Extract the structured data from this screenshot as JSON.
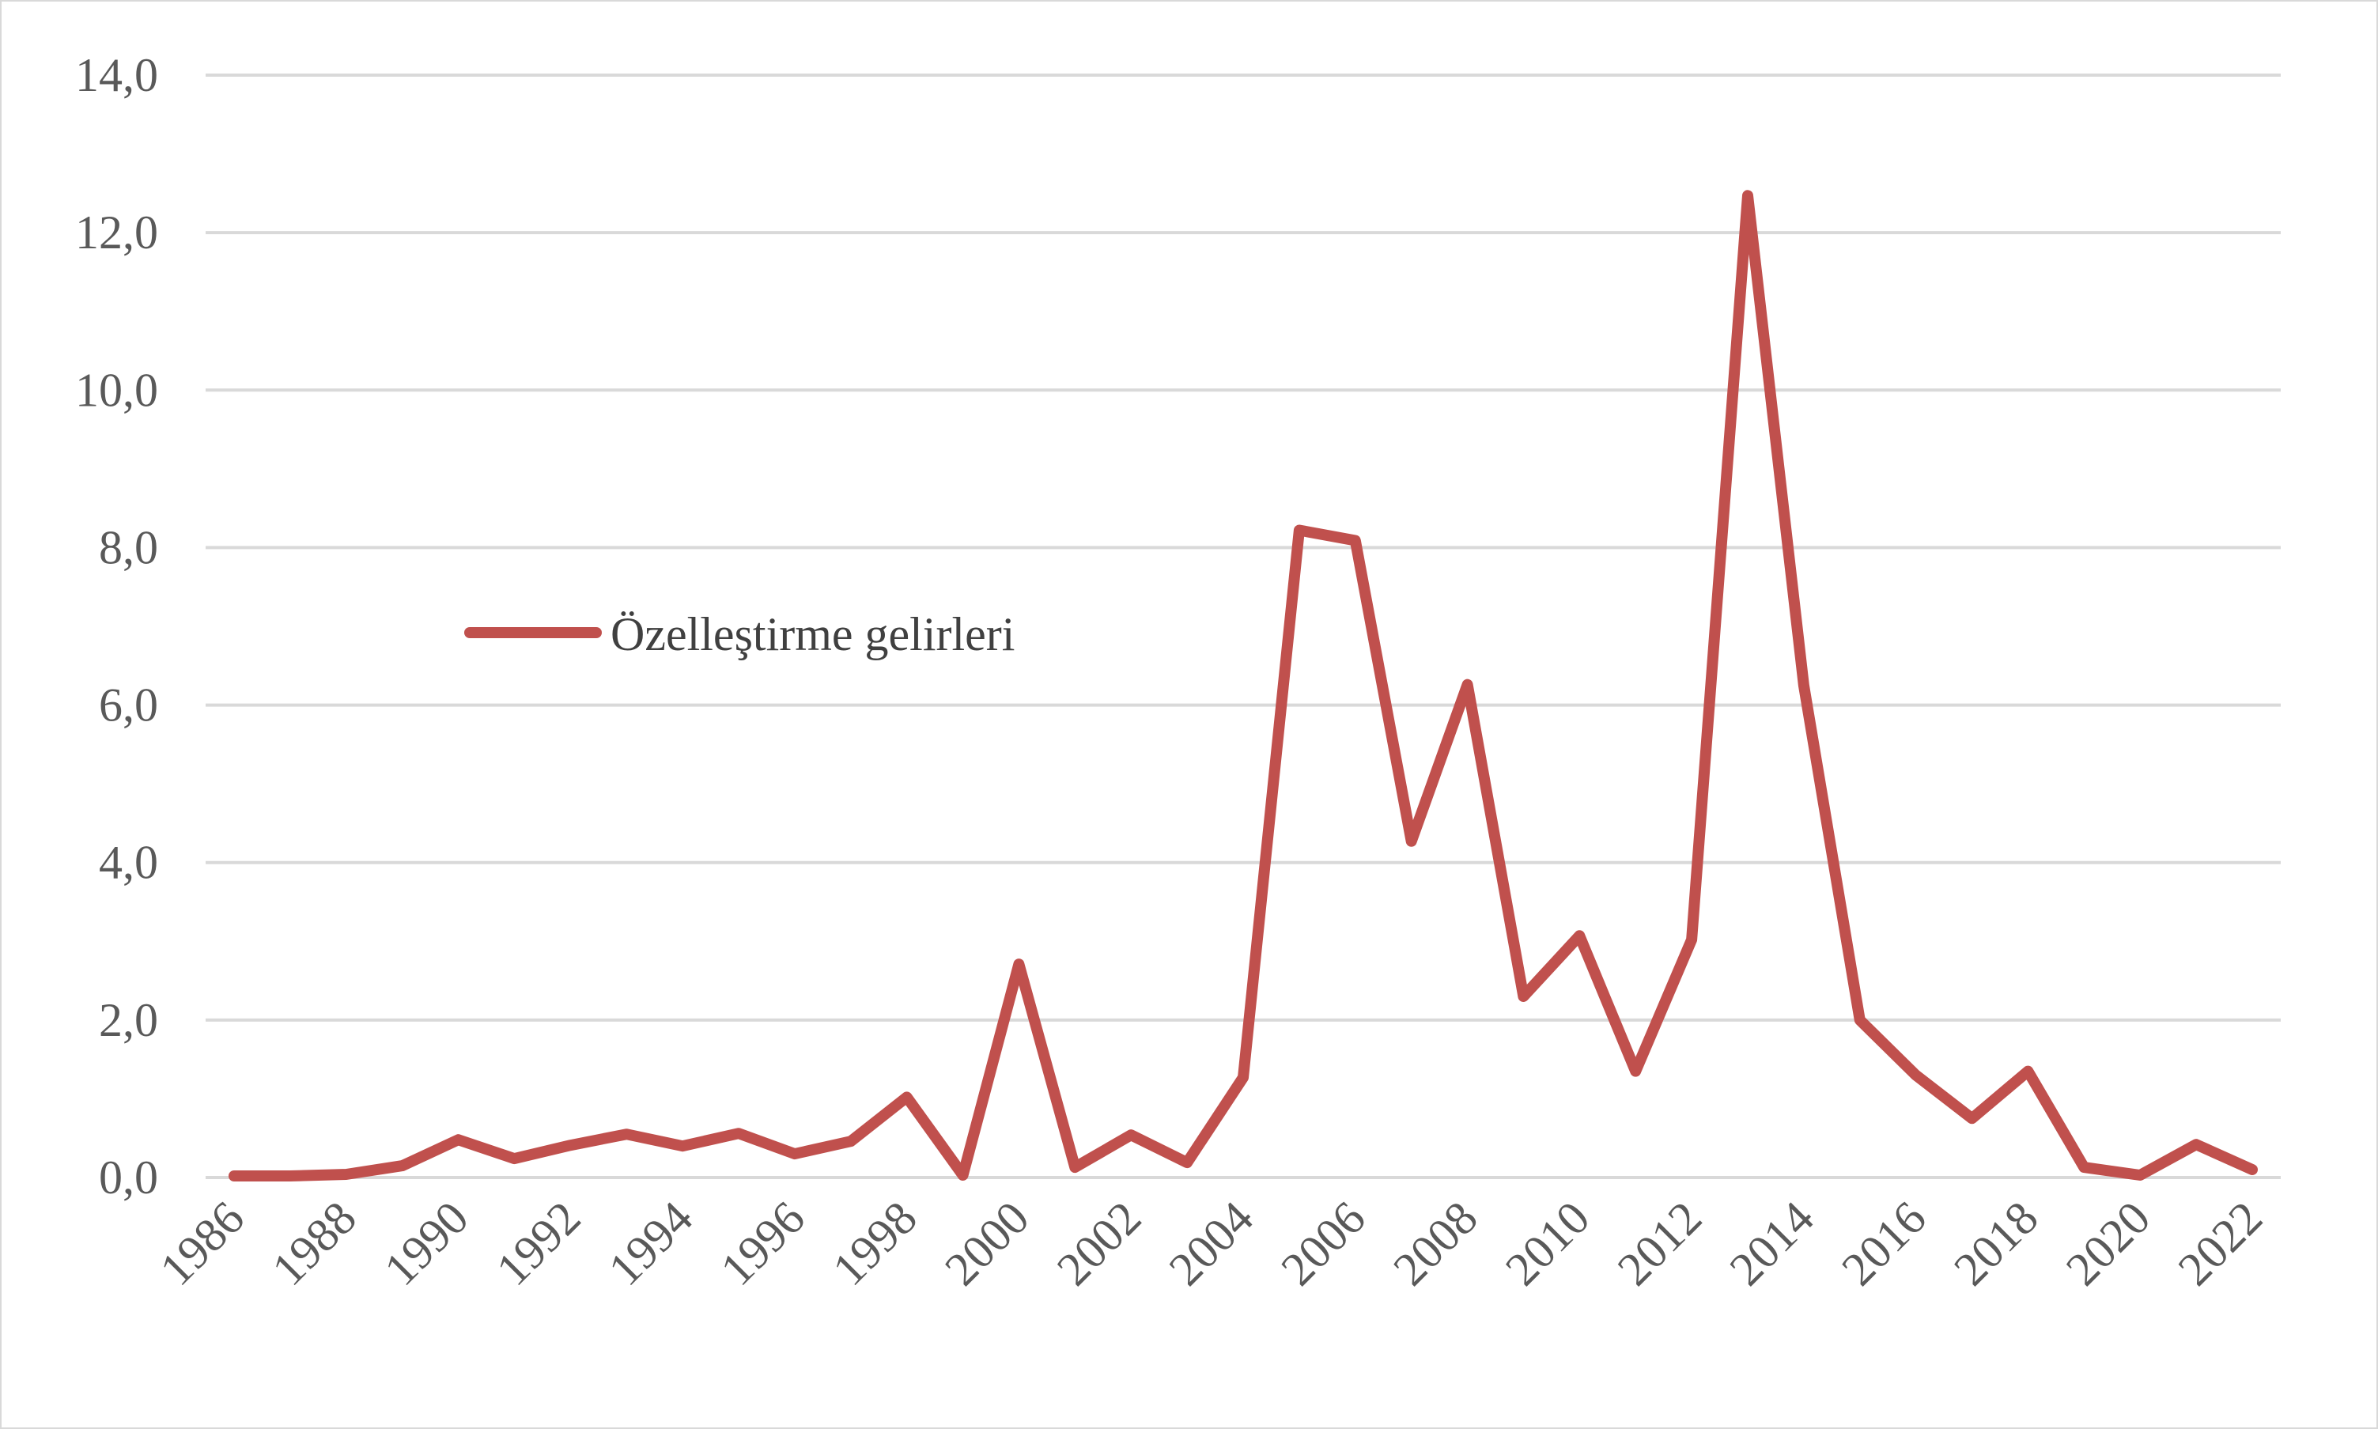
{
  "chart_data": {
    "type": "line",
    "title": "",
    "xlabel": "",
    "ylabel": "",
    "x": [
      1986,
      1987,
      1988,
      1989,
      1990,
      1991,
      1992,
      1993,
      1994,
      1995,
      1996,
      1997,
      1998,
      1999,
      2000,
      2001,
      2002,
      2003,
      2004,
      2005,
      2006,
      2007,
      2008,
      2009,
      2010,
      2011,
      2012,
      2013,
      2014,
      2015,
      2016,
      2017,
      2018,
      2019,
      2020,
      2021,
      2022
    ],
    "x_tick_labels": [
      "1986",
      "1988",
      "1990",
      "1992",
      "1994",
      "1996",
      "1998",
      "2000",
      "2002",
      "2004",
      "2006",
      "2008",
      "2010",
      "2012",
      "2014",
      "2016",
      "2018",
      "2020",
      "2022"
    ],
    "y_tick_labels": [
      "0,0",
      "2,0",
      "4,0",
      "6,0",
      "8,0",
      "10,0",
      "12,0",
      "14,0"
    ],
    "ylim": [
      0,
      14
    ],
    "grid": true,
    "legend_position": "center-left",
    "series": [
      {
        "name": "Özelleştirme gelirleri",
        "color": "#c0504d",
        "values": [
          0.02,
          0.02,
          0.04,
          0.15,
          0.48,
          0.24,
          0.41,
          0.55,
          0.4,
          0.56,
          0.3,
          0.46,
          1.02,
          0.03,
          2.71,
          0.13,
          0.54,
          0.19,
          1.27,
          8.22,
          8.09,
          4.27,
          6.26,
          2.3,
          3.07,
          1.35,
          3.02,
          12.47,
          6.25,
          2.0,
          1.3,
          0.75,
          1.35,
          0.13,
          0.03,
          0.42,
          0.1
        ]
      }
    ]
  }
}
